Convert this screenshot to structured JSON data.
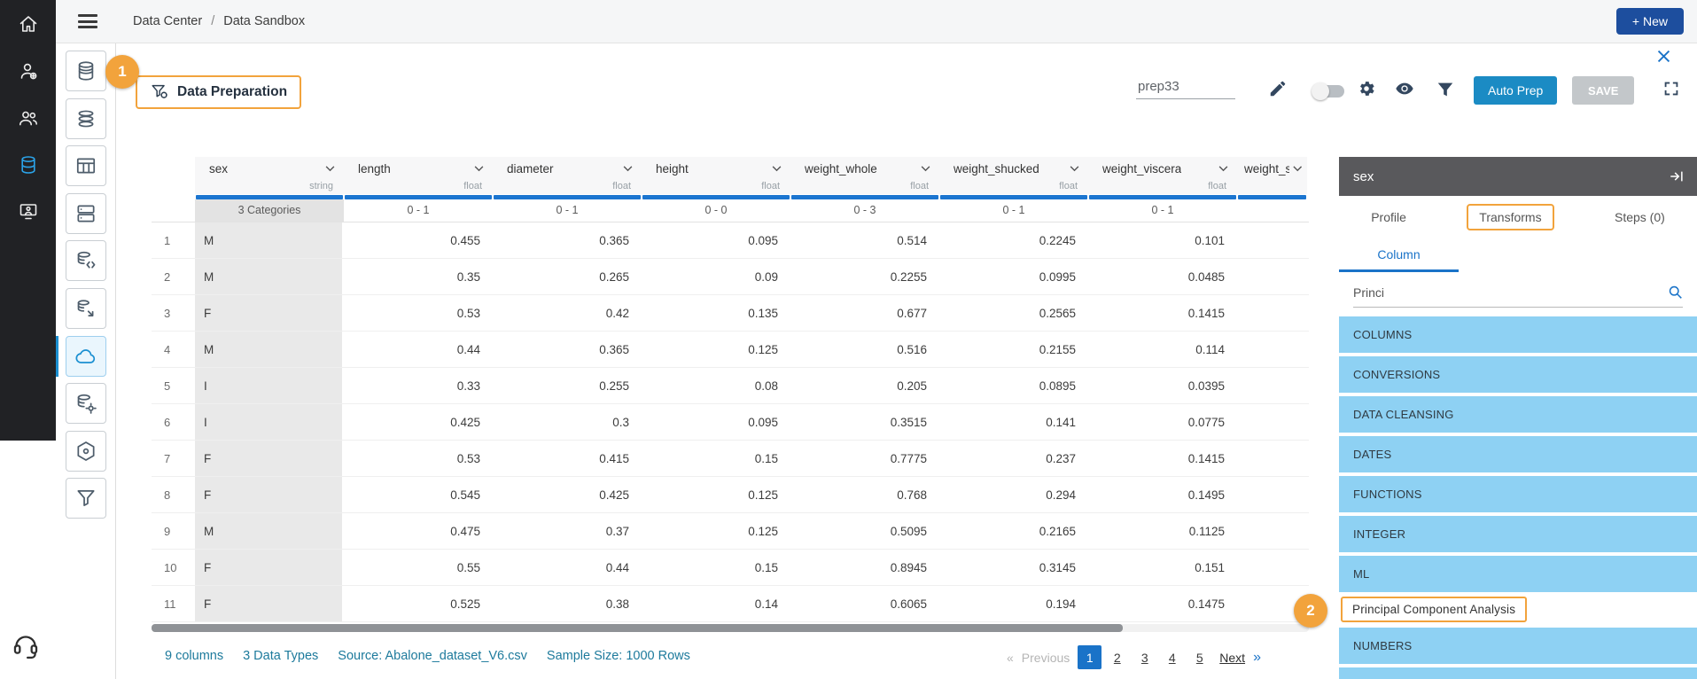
{
  "colors": {
    "annotation_orange": "#f2a33c",
    "accent_blue": "#1a73c8",
    "toolbar_button_blue": "#1b8bc4",
    "new_button_blue": "#1d4e9e",
    "list_item_blue": "#8ed1f3",
    "column_bar_blue": "#1b75d0",
    "panel_header_gray": "#59595c"
  },
  "topbar": {
    "breadcrumb": {
      "items": [
        "Data Center",
        "Data Sandbox"
      ],
      "separator": "/"
    },
    "new_button": "+ New"
  },
  "sidebar": {
    "primary_items": [
      {
        "icon": "home"
      },
      {
        "icon": "user-admin"
      },
      {
        "icon": "users"
      },
      {
        "icon": "data",
        "active": true
      },
      {
        "icon": "workspace"
      }
    ],
    "support_icon": "support-headset",
    "secondary_items": [
      {
        "icon": "data-mart"
      },
      {
        "icon": "datasets"
      },
      {
        "icon": "data-table"
      },
      {
        "icon": "storage"
      },
      {
        "icon": "sql-database"
      },
      {
        "icon": "data-transform"
      },
      {
        "icon": "cloud",
        "active": true
      },
      {
        "icon": "data-settings"
      },
      {
        "icon": "api"
      },
      {
        "icon": "data-prep"
      }
    ]
  },
  "toolbar": {
    "annotation_step_1": "1",
    "title": "Data Preparation",
    "prep_name_value": "prep33",
    "auto_prep_button": "Auto Prep",
    "save_button": "SAVE"
  },
  "table": {
    "columns": [
      {
        "name": "sex",
        "type": "string",
        "range": "3 Categories"
      },
      {
        "name": "length",
        "type": "float",
        "range": "0 - 1"
      },
      {
        "name": "diameter",
        "type": "float",
        "range": "0 - 1"
      },
      {
        "name": "height",
        "type": "float",
        "range": "0 - 0"
      },
      {
        "name": "weight_whole",
        "type": "float",
        "range": "0 - 3"
      },
      {
        "name": "weight_shucked",
        "type": "float",
        "range": "0 - 1"
      },
      {
        "name": "weight_viscera",
        "type": "float",
        "range": "0 - 1"
      },
      {
        "name": "weight_s",
        "type": "",
        "range": "",
        "truncated": true
      }
    ],
    "rows": [
      {
        "n": "1",
        "sex": "M",
        "values": [
          "0.455",
          "0.365",
          "0.095",
          "0.514",
          "0.2245",
          "0.101"
        ]
      },
      {
        "n": "2",
        "sex": "M",
        "values": [
          "0.35",
          "0.265",
          "0.09",
          "0.2255",
          "0.0995",
          "0.0485"
        ]
      },
      {
        "n": "3",
        "sex": "F",
        "values": [
          "0.53",
          "0.42",
          "0.135",
          "0.677",
          "0.2565",
          "0.1415"
        ]
      },
      {
        "n": "4",
        "sex": "M",
        "values": [
          "0.44",
          "0.365",
          "0.125",
          "0.516",
          "0.2155",
          "0.114"
        ]
      },
      {
        "n": "5",
        "sex": "I",
        "values": [
          "0.33",
          "0.255",
          "0.08",
          "0.205",
          "0.0895",
          "0.0395"
        ]
      },
      {
        "n": "6",
        "sex": "I",
        "values": [
          "0.425",
          "0.3",
          "0.095",
          "0.3515",
          "0.141",
          "0.0775"
        ]
      },
      {
        "n": "7",
        "sex": "F",
        "values": [
          "0.53",
          "0.415",
          "0.15",
          "0.7775",
          "0.237",
          "0.1415"
        ]
      },
      {
        "n": "8",
        "sex": "F",
        "values": [
          "0.545",
          "0.425",
          "0.125",
          "0.768",
          "0.294",
          "0.1495"
        ]
      },
      {
        "n": "9",
        "sex": "M",
        "values": [
          "0.475",
          "0.37",
          "0.125",
          "0.5095",
          "0.2165",
          "0.1125"
        ]
      },
      {
        "n": "10",
        "sex": "F",
        "values": [
          "0.55",
          "0.44",
          "0.15",
          "0.8945",
          "0.3145",
          "0.151"
        ]
      },
      {
        "n": "11",
        "sex": "F",
        "values": [
          "0.525",
          "0.38",
          "0.14",
          "0.6065",
          "0.194",
          "0.1475"
        ]
      }
    ]
  },
  "footer": {
    "columns_count": "9 columns",
    "data_types": "3 Data Types",
    "source": "Source: Abalone_dataset_V6.csv",
    "sample_size": "Sample Size: 1000 Rows"
  },
  "pagination": {
    "prev_symbol": "«",
    "prev_label": "Previous",
    "pages": [
      "1",
      "2",
      "3",
      "4",
      "5"
    ],
    "active_page": "1",
    "next_label": "Next",
    "next_symbol": "»"
  },
  "panel": {
    "column_name": "sex",
    "tabs": [
      {
        "label": "Profile"
      },
      {
        "label": "Transforms",
        "active": true
      },
      {
        "label": "Steps (0)"
      }
    ],
    "subtab": "Column",
    "search_value": "Princi",
    "annotation_step_2": "2",
    "items": [
      {
        "label": "COLUMNS"
      },
      {
        "label": "CONVERSIONS"
      },
      {
        "label": "DATA CLEANSING"
      },
      {
        "label": "DATES"
      },
      {
        "label": "FUNCTIONS"
      },
      {
        "label": "INTEGER"
      },
      {
        "label": "ML"
      },
      {
        "label": "Principal Component Analysis",
        "highlighted": true
      },
      {
        "label": "NUMBERS"
      },
      {
        "label": "",
        "partial": true
      }
    ]
  }
}
